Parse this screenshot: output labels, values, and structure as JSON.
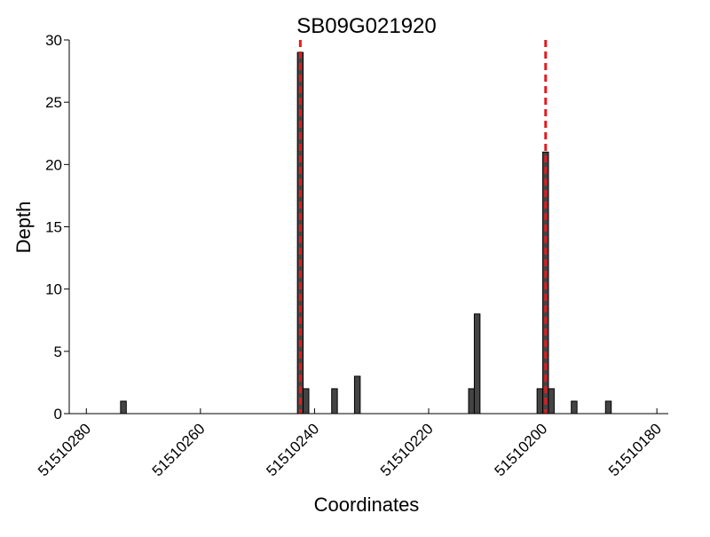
{
  "chart_data": {
    "type": "bar",
    "title": "SB09G021920",
    "xlabel": "Coordinates",
    "ylabel": "Depth",
    "x": [
      51510273,
      51510242,
      51510241,
      51510236,
      51510232,
      51510212,
      51510211,
      51510200,
      51510199,
      51510198,
      51510194,
      51510188
    ],
    "values": [
      1,
      29,
      2,
      2,
      3,
      2,
      8,
      2,
      21,
      2,
      1,
      1
    ],
    "color": "#444444",
    "vlines": [
      51510242.5,
      51510199.5
    ],
    "vline_color": "#e41a1c",
    "xlim": [
      51510283,
      51510178
    ],
    "xticks": [
      51510280,
      51510260,
      51510240,
      51510220,
      51510200,
      51510180
    ],
    "ylim": [
      0,
      30
    ],
    "yticks": [
      0,
      5,
      10,
      15,
      20,
      25,
      30
    ]
  }
}
